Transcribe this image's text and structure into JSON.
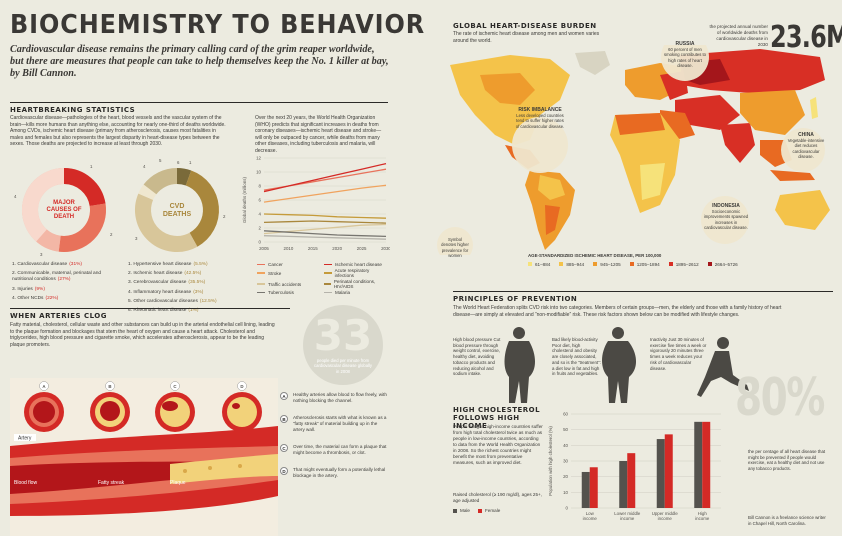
{
  "header": {
    "title": "BIOCHEMISTRY TO BEHAVIOR",
    "subtitle": "Cardiovascular disease remains the primary calling card of the grim reaper worldwide, but there are measures that people can take to help themselves keep the No. 1 killer at bay, by Bill Cannon."
  },
  "heartbreaking": {
    "heading": "HEARTBREAKING STATISTICS",
    "body": "Cardiovascular disease—pathologies of the heart, blood vessels and the vascular system of the brain—kills more humans than anything else, accounting for nearly one-third of deaths worldwide. Among CVDs, ischemic heart disease (primary from atherosclerosis, causes most fatalities in males and females but also represents the largest disparity in heart-disease types between the sexes. Those deaths are projected to increase at least through 2030.",
    "trend_text": "Over the next 20 years, the World Health Organization (WHO) predicts that significant increases in deaths from coronary diseases—ischemic heart disease and stroke—will only be outpaced by cancer, while deaths from many other diseases, including tuberculosis and malaria, will decrease.",
    "donut1_label": "MAJOR CAUSES OF DEATH",
    "donut2_label": "CVD DEATHS",
    "donut1_nums": [
      "1",
      "2",
      "3",
      "4"
    ],
    "donut2_nums": [
      "1",
      "2",
      "3",
      "4",
      "5",
      "6"
    ],
    "causes": [
      {
        "text": "1. Cardiovascular disease",
        "pct": "(31%)"
      },
      {
        "text": "2. Communicable, maternal, perinatal and nutritional conditions",
        "pct": "(27%)"
      },
      {
        "text": "3. Injuries",
        "pct": "(9%)"
      },
      {
        "text": "4. Other NCDs",
        "pct": "(22%)"
      }
    ],
    "cvd": [
      {
        "text": "1. Hypertensive heart disease",
        "pct": "(5.5%)"
      },
      {
        "text": "2. Ischemic heart disease",
        "pct": "(42.5%)"
      },
      {
        "text": "3. Cerebrovascular disease",
        "pct": "(35.5%)"
      },
      {
        "text": "4. Inflammatory heart disease",
        "pct": "(3%)"
      },
      {
        "text": "5. Other cardiovascular diseases",
        "pct": "(12.5%)"
      },
      {
        "text": "6. Rheumatic heart disease",
        "pct": "(1%)"
      }
    ]
  },
  "colors": {
    "red": "#d42a26",
    "dark_red": "#a5201c",
    "salmon": "#e8725b",
    "pink": "#f3b7a6",
    "olive": "#a9873c",
    "tan": "#d8c69a",
    "cream": "#efe7cf",
    "gray": "#54524d"
  },
  "chart_data": {
    "type": "line",
    "x": [
      2005,
      2010,
      2015,
      2020,
      2025,
      2030
    ],
    "ylabel": "Global deaths (millions)",
    "ylim": [
      0,
      12
    ],
    "yticks": [
      "0",
      "2",
      "4",
      "6",
      "8",
      "10",
      "12"
    ],
    "series": [
      {
        "name": "Cancer",
        "color": "#e8725b",
        "values": [
          7.4,
          8.0,
          8.6,
          9.2,
          9.8,
          10.4
        ]
      },
      {
        "name": "Ischemic heart disease",
        "color": "#d42a26",
        "values": [
          7.2,
          8.0,
          8.8,
          9.6,
          10.4,
          11.2
        ]
      },
      {
        "name": "Stroke",
        "color": "#f0a35e",
        "values": [
          5.7,
          6.2,
          6.7,
          7.2,
          7.7,
          8.1
        ]
      },
      {
        "name": "Acute respiratory infections",
        "color": "#c59b3a",
        "values": [
          4.0,
          3.9,
          3.8,
          3.6,
          3.5,
          3.4
        ]
      },
      {
        "name": "Traffic accidents",
        "color": "#d8c69a",
        "values": [
          1.2,
          1.5,
          1.8,
          2.1,
          2.4,
          2.5
        ]
      },
      {
        "name": "Perinatal conditions, HIV/AIDS",
        "color": "#a9873c",
        "values": [
          2.8,
          2.9,
          3.0,
          2.9,
          2.8,
          2.7
        ]
      },
      {
        "name": "Tuberculosis",
        "color": "#777570",
        "values": [
          1.6,
          1.4,
          1.2,
          1.0,
          0.9,
          0.8
        ]
      },
      {
        "name": "Malaria",
        "color": "#b5b3ab",
        "values": [
          0.9,
          0.8,
          0.7,
          0.6,
          0.5,
          0.4
        ]
      }
    ]
  },
  "arteries": {
    "heading": "WHEN ARTERIES CLOG",
    "body": "Fatty material, cholesterol, cellular waste and other substances can build up in the arterial endothelial cell lining, leading to the plaque formation and blockages that stem the heart of oxygen and cause a heart attack. Cholesterol and triglycerides, high blood pressure and cigarette smoke, which accelerates atherosclerosis, appear to be the leading plaque promoters.",
    "stage_letters": [
      "A",
      "B",
      "C",
      "D"
    ],
    "labels": {
      "artery": "Artery",
      "blood_flow": "Blood flow",
      "fatty_streak": "Fatty streak",
      "plaque": "Plaque"
    },
    "steps": [
      {
        "letter": "A",
        "text": "Healthy arteries allow blood to flow freely, with nothing blocking the channel."
      },
      {
        "letter": "B",
        "text": "Atherosclerosis starts with what is known as a “fatty streak” of material building up in the artery wall."
      },
      {
        "letter": "C",
        "text": "Over time, the material can form a plaque that might become a thrombosis, or clot."
      },
      {
        "letter": "D",
        "text": "That might eventually form a potentially lethal blockage in the artery."
      }
    ]
  },
  "big33": {
    "number": "33",
    "caption": "people died per minute from cardiovascular disease globally in 2008"
  },
  "map": {
    "heading": "GLOBAL HEART-DISEASE BURDEN",
    "sub": "The rate of ischemic heart disease among men and women varies around the world.",
    "big_number": "23.6M",
    "big_caption": "the projected annual number of worldwide deaths from cardiovascular disease in 2030",
    "russia": {
      "title": "RUSSIA",
      "text": "60 percent of men smoking contributes to high rates of heart disease."
    },
    "risk": {
      "title": "RISK IMBALANCE",
      "text": "Less developed countries tend to suffer higher rates of cardiovascular disease."
    },
    "china": {
      "title": "CHINA",
      "text": "Vegetable-intensive diet reduces cardiovascular disease."
    },
    "indonesia": {
      "title": "INDONESIA",
      "text": "Socioeconomic improvements spawned increases in cardiovascular disease."
    },
    "symbol_note": "Symbol denotes higher prevalence for women",
    "legend_title": "AGE-STANDARDIZED ISCHEMIC HEART DISEASE, PER 100,000",
    "legend": [
      {
        "label": "61–884",
        "color": "#f6e27a"
      },
      {
        "label": "885–944",
        "color": "#f4c34a"
      },
      {
        "label": "945–1205",
        "color": "#ee9c2d"
      },
      {
        "label": "1205–1894",
        "color": "#e86a22"
      },
      {
        "label": "1895–2612",
        "color": "#d82f25"
      },
      {
        "label": "2664–5726",
        "color": "#a4161b"
      }
    ]
  },
  "principles": {
    "heading": "PRINCIPLES OF PREVENTION",
    "body": "The World Heart Federation splits CVD risk into two categories. Members of certain groups—men, the elderly and those with a family history of heart disease—are simply at elevated and “non-modifiable” risk. These risk factors shown below can be modified with lifestyle changes.",
    "tip1": "High blood pressure Cut blood pressure through weight control, exercise, healthy diet, avoiding tobacco products and reducing alcohol and sodium intake.",
    "tip2": "Bad likely blood-activity Poor diet, high cholesterol and obesity are closely associated, and so is the “treatment”: a diet low in fat and high in fruits and vegetables.",
    "tip3": "Inactivity Just 30 minutes of exercise five times a week or vigorously 20 minutes three times a week reduces your risk of cardiovascular disease."
  },
  "income": {
    "heading": "HIGH CHOLESTEROL FOLLOWS HIGH INCOME",
    "body": "People living in high-income countries suffer from high total cholesterol twice as much as people in low-income countries, according to data from the World Health Organization in 2008. So the richest countries might benefit the most from preventative measures, such as improved diet.",
    "note": "Raised cholesterol (≥ 190 mg/dl), ages 25+, age adjusted",
    "male_label": "Male",
    "female_label": "Female",
    "ylabel": "Population with high cholesterol (%)",
    "yticks": [
      "0",
      "10",
      "20",
      "30",
      "40",
      "50",
      "60"
    ],
    "groups": [
      {
        "name": "Low income",
        "male": 23,
        "female": 26
      },
      {
        "name": "Lower middle income",
        "male": 30,
        "female": 35
      },
      {
        "name": "Upper middle income",
        "male": 44,
        "female": 47
      },
      {
        "name": "High income",
        "male": 55,
        "female": 55
      }
    ]
  },
  "pct80": {
    "number": "80%",
    "caption": "the per centage of all heart disease that might be prevented if people would exercise, eat a healthy diet and not use any tobacco products."
  },
  "credit": "Bill Cannon is a freelance science writer in Chapel Hill, North Carolina."
}
